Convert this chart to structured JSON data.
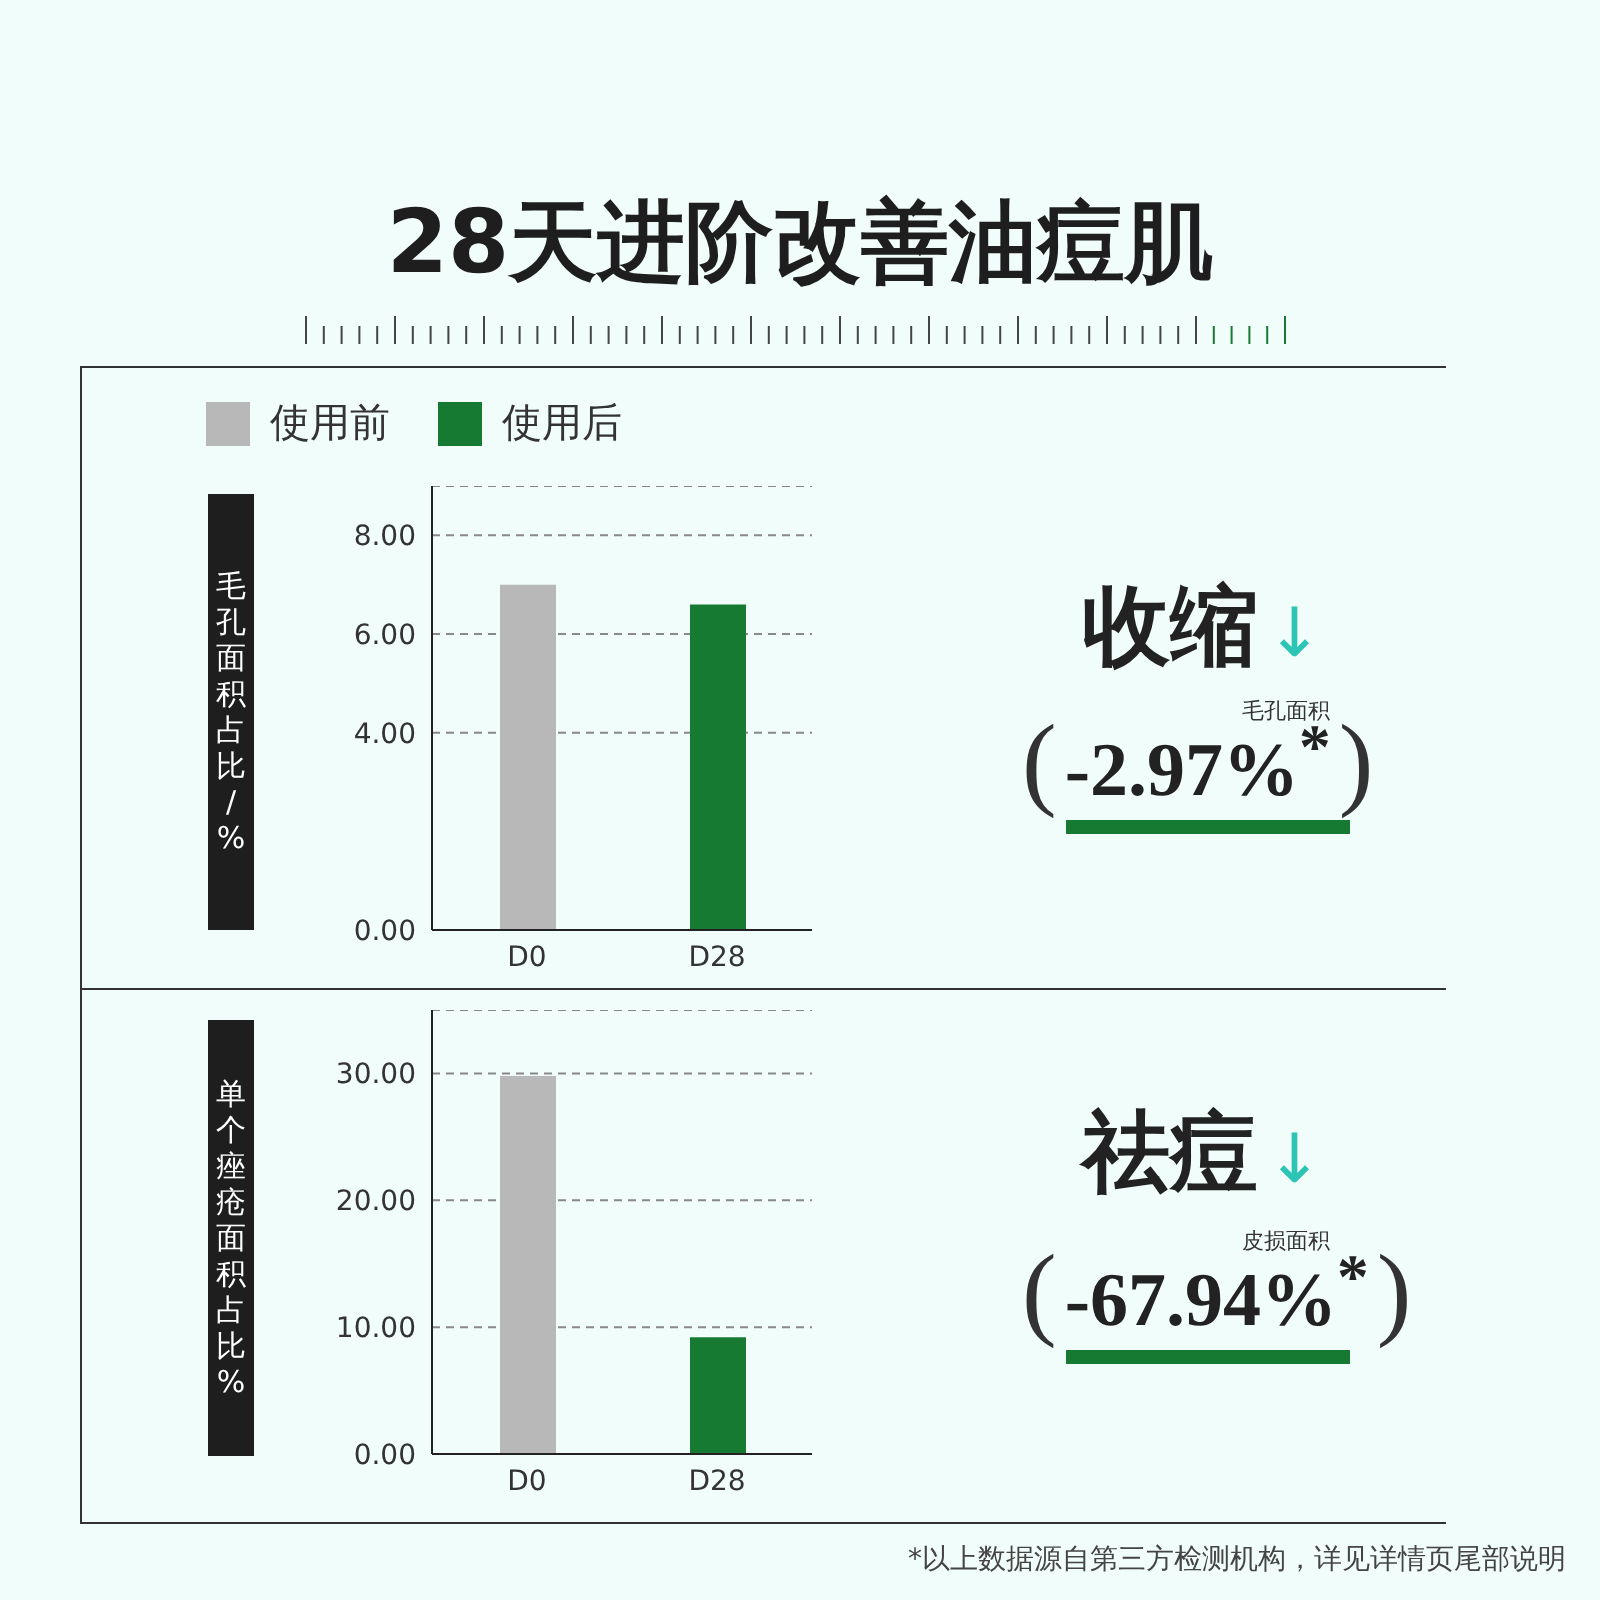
{
  "chart_data": [
    {
      "type": "bar",
      "title": "28天进阶改善油痘肌",
      "categories": [
        "D0",
        "D28"
      ],
      "stacked": true,
      "legend": "top",
      "grid": "y",
      "ylabel": "毛孔面积占比/%",
      "ylim": [
        0,
        9
      ],
      "yticks": [
        {
          "value": 0,
          "label": "0.00"
        },
        {
          "value": 4,
          "label": "4.00"
        },
        {
          "value": 6,
          "label": "6.00"
        },
        {
          "value": 8,
          "label": "8.00"
        }
      ],
      "series": [
        {
          "name": "使用前",
          "color": "#b8b8b8",
          "values": [
            7.0,
            null
          ]
        },
        {
          "name": "使用后",
          "color": "#177a32",
          "values": [
            null,
            6.6
          ]
        }
      ],
      "annotations": [
        "收缩↓",
        "(-2.97%$^{*}$)",
        "毛孔面积"
      ]
    },
    {
      "type": "bar",
      "categories": [
        "D0",
        "D28"
      ],
      "stacked": true,
      "grid": "y",
      "ylabel": "单个痤疮面积占比%",
      "ylim": [
        0,
        35
      ],
      "yticks": [
        {
          "value": 0,
          "label": "0.00"
        },
        {
          "value": 10,
          "label": "10.00"
        },
        {
          "value": 20,
          "label": "20.00"
        },
        {
          "value": 30,
          "label": "30.00"
        }
      ],
      "series": [
        {
          "color": "#b8b8b8",
          "values": [
            29.8,
            null
          ]
        },
        {
          "color": "#177a32",
          "values": [
            null,
            9.2
          ]
        }
      ],
      "annotations": [
        "祛痘↓",
        "(-67.94%$^{*}$)",
        "皮损面积",
        "*以上数据源自第三方检测机构，详见详情页尾部说明"
      ]
    }
  ]
}
